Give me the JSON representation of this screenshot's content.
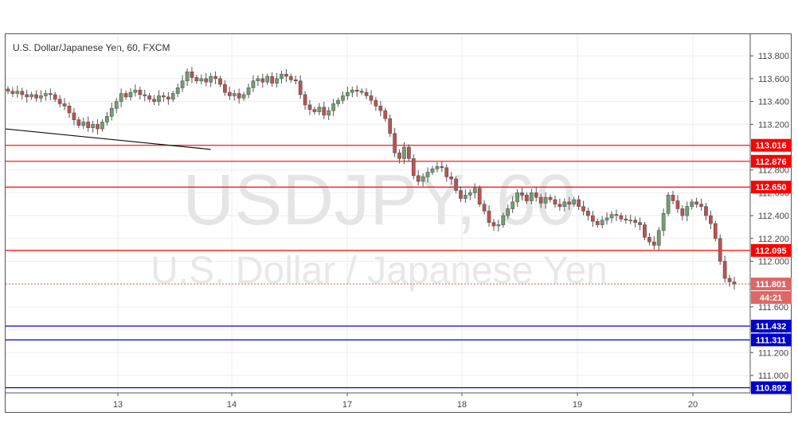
{
  "chart_data": {
    "type": "candlestick",
    "title": "U.S. Dollar/Japanese Yen, 60, FXCM",
    "watermark": {
      "symbol": "USDJPY, 60",
      "name": "U.S. Dollar / Japanese Yen"
    },
    "x_ticks": [
      "13",
      "14",
      "17",
      "18",
      "19",
      "20"
    ],
    "y_ticks": [
      "113.800",
      "113.600",
      "113.400",
      "113.200",
      "113.000",
      "112.800",
      "112.600",
      "112.400",
      "112.200",
      "112.000",
      "111.800",
      "111.600",
      "111.400",
      "111.200",
      "111.000"
    ],
    "ylim": [
      110.85,
      113.95
    ],
    "last_price": {
      "value": "111.801",
      "countdown": "44:21",
      "color": "#e06666"
    },
    "resistance_levels": [
      {
        "value": "113.016",
        "color": "#ff0000"
      },
      {
        "value": "112.876",
        "color": "#ff0000"
      },
      {
        "value": "112.650",
        "color": "#ff0000"
      },
      {
        "value": "112.095",
        "color": "#ff0000"
      }
    ],
    "support_levels": [
      {
        "value": "111.432",
        "color": "#0000cc"
      },
      {
        "value": "111.311",
        "color": "#0000cc"
      },
      {
        "value": "110.892",
        "color": "#0000cc"
      }
    ],
    "trendline": {
      "from": {
        "bar": 0,
        "price": 113.16
      },
      "to": {
        "bar": 43,
        "price": 112.98
      }
    },
    "colors": {
      "up": "#26a69a",
      "up_fill": "#70a070",
      "down": "#ef5350",
      "down_fill": "#c0504d"
    },
    "series": [
      {
        "name": "USDJPY",
        "close": [
          113.49,
          113.47,
          113.49,
          113.46,
          113.44,
          113.46,
          113.43,
          113.45,
          113.47,
          113.46,
          113.42,
          113.38,
          113.36,
          113.3,
          113.24,
          113.19,
          113.22,
          113.17,
          113.2,
          113.16,
          113.22,
          113.27,
          113.34,
          113.4,
          113.47,
          113.44,
          113.48,
          113.5,
          113.46,
          113.45,
          113.42,
          113.4,
          113.45,
          113.44,
          113.42,
          113.47,
          113.52,
          113.58,
          113.66,
          113.61,
          113.58,
          113.6,
          113.57,
          113.62,
          113.6,
          113.55,
          113.48,
          113.45,
          113.47,
          113.43,
          113.46,
          113.52,
          113.58,
          113.6,
          113.57,
          113.62,
          113.56,
          113.6,
          113.64,
          113.62,
          113.59,
          113.58,
          113.46,
          113.37,
          113.33,
          113.31,
          113.35,
          113.28,
          113.32,
          113.38,
          113.41,
          113.45,
          113.48,
          113.5,
          113.49,
          113.48,
          113.45,
          113.41,
          113.36,
          113.32,
          113.25,
          113.12,
          112.95,
          112.9,
          113.0,
          112.9,
          112.75,
          112.7,
          112.74,
          112.78,
          112.81,
          112.83,
          112.82,
          112.74,
          112.72,
          112.62,
          112.55,
          112.58,
          112.6,
          112.64,
          112.5,
          112.44,
          112.34,
          112.31,
          112.32,
          112.4,
          112.46,
          112.52,
          112.6,
          112.58,
          112.53,
          112.6,
          112.56,
          112.51,
          112.56,
          112.54,
          112.5,
          112.48,
          112.52,
          112.5,
          112.54,
          112.48,
          112.44,
          112.4,
          112.35,
          112.32,
          112.36,
          112.38,
          112.41,
          112.4,
          112.37,
          112.36,
          112.36,
          112.34,
          112.32,
          112.21,
          112.17,
          112.14,
          112.27,
          112.42,
          112.58,
          112.53,
          112.46,
          112.4,
          112.48,
          112.52,
          112.5,
          112.48,
          112.4,
          112.33,
          112.2,
          112.0,
          111.85,
          111.82,
          111.8
        ]
      }
    ]
  }
}
